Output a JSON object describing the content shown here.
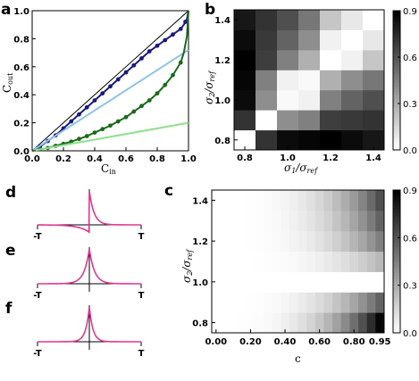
{
  "panels": {
    "a": {
      "letter": "a"
    },
    "b": {
      "letter": "b"
    },
    "c": {
      "letter": "c"
    },
    "d": {
      "letter": "d"
    },
    "e": {
      "letter": "e"
    },
    "f": {
      "letter": "f"
    }
  },
  "colors": {
    "identity": "#000000",
    "navy": "#1a1a80",
    "light_blue": "#8fc3e6",
    "dark_green": "#1a6b1a",
    "light_green": "#8ee08e",
    "pink": "#e0378f"
  },
  "chart_data": [
    {
      "id": "a",
      "type": "line",
      "xlabel": "C_in",
      "ylabel": "C_out",
      "xlim": [
        0.0,
        1.0
      ],
      "ylim": [
        0.0,
        1.0
      ],
      "xticks": [
        "0.0",
        "0.2",
        "0.4",
        "0.6",
        "0.8",
        "1.0"
      ],
      "yticks": [
        "0.0",
        "0.2",
        "0.4",
        "0.6",
        "0.8",
        "1.0"
      ],
      "series": [
        {
          "style": "identity",
          "x": [
            0,
            1
          ],
          "y": [
            0,
            1
          ]
        },
        {
          "style": "navy-fit",
          "x": [
            0,
            0.05,
            0.1,
            0.15,
            0.2,
            0.25,
            0.3,
            0.35,
            0.4,
            0.45,
            0.5,
            0.55,
            0.6,
            0.65,
            0.7,
            0.75,
            0.8,
            0.85,
            0.9,
            0.95,
            0.97,
            0.99,
            1.0
          ],
          "y": [
            0,
            0.03,
            0.07,
            0.11,
            0.16,
            0.21,
            0.26,
            0.31,
            0.36,
            0.41,
            0.46,
            0.51,
            0.56,
            0.61,
            0.66,
            0.71,
            0.75,
            0.79,
            0.83,
            0.87,
            0.9,
            0.94,
            1.0
          ]
        },
        {
          "style": "navy-points",
          "x": [
            0.05,
            0.1,
            0.15,
            0.2,
            0.25,
            0.3,
            0.35,
            0.4,
            0.45,
            0.5,
            0.55,
            0.6,
            0.65,
            0.7,
            0.75,
            0.8,
            0.85,
            0.9,
            0.95,
            0.98
          ],
          "y": [
            0.03,
            0.07,
            0.11,
            0.16,
            0.21,
            0.26,
            0.31,
            0.36,
            0.41,
            0.46,
            0.51,
            0.56,
            0.61,
            0.66,
            0.71,
            0.75,
            0.79,
            0.83,
            0.87,
            0.92
          ]
        },
        {
          "style": "light-blue",
          "x": [
            0,
            1
          ],
          "y": [
            0,
            0.72
          ]
        },
        {
          "style": "green-fit",
          "x": [
            0,
            0.05,
            0.1,
            0.15,
            0.2,
            0.25,
            0.3,
            0.35,
            0.4,
            0.45,
            0.5,
            0.55,
            0.6,
            0.65,
            0.7,
            0.75,
            0.8,
            0.85,
            0.9,
            0.95,
            0.97,
            0.99,
            1.0
          ],
          "y": [
            0,
            0.01,
            0.02,
            0.035,
            0.05,
            0.065,
            0.085,
            0.105,
            0.13,
            0.155,
            0.18,
            0.21,
            0.24,
            0.28,
            0.32,
            0.36,
            0.41,
            0.47,
            0.54,
            0.63,
            0.7,
            0.82,
            1.0
          ]
        },
        {
          "style": "green-points",
          "x": [
            0.05,
            0.1,
            0.15,
            0.2,
            0.25,
            0.3,
            0.35,
            0.4,
            0.45,
            0.5,
            0.55,
            0.6,
            0.65,
            0.7,
            0.75,
            0.8,
            0.85,
            0.9,
            0.95
          ],
          "y": [
            0.01,
            0.02,
            0.035,
            0.05,
            0.065,
            0.085,
            0.105,
            0.13,
            0.155,
            0.18,
            0.21,
            0.24,
            0.28,
            0.32,
            0.36,
            0.41,
            0.47,
            0.54,
            0.63
          ]
        },
        {
          "style": "light-green",
          "x": [
            0,
            1
          ],
          "y": [
            0,
            0.2
          ]
        }
      ]
    },
    {
      "id": "b",
      "type": "heatmap",
      "xlabel": "σ1/σref",
      "ylabel": "σ2/σref",
      "xticks": [
        "0.8",
        "1.0",
        "1.2",
        "1.4"
      ],
      "yticks": [
        "0.8",
        "1.0",
        "1.2",
        "1.4"
      ],
      "grid_values": [
        0.8,
        0.9,
        1.0,
        1.1,
        1.2,
        1.3,
        1.4
      ],
      "colorbar_ticks": [
        "0.0",
        "0.3",
        "0.6",
        "0.9"
      ],
      "vmin": 0.0,
      "vmax": 0.9,
      "rows_bottom_to_top": [
        [
          0.0,
          0.72,
          0.86,
          0.88,
          0.9,
          0.86,
          0.82
        ],
        [
          0.72,
          0.0,
          0.4,
          0.45,
          0.68,
          0.7,
          0.72
        ],
        [
          0.86,
          0.4,
          0.02,
          0.05,
          0.45,
          0.55,
          0.62
        ],
        [
          0.88,
          0.45,
          0.05,
          0.02,
          0.28,
          0.4,
          0.48
        ],
        [
          0.9,
          0.68,
          0.45,
          0.28,
          0.0,
          0.05,
          0.2
        ],
        [
          0.86,
          0.7,
          0.55,
          0.4,
          0.05,
          0.0,
          0.08
        ],
        [
          0.82,
          0.72,
          0.62,
          0.48,
          0.2,
          0.08,
          0.0
        ]
      ]
    },
    {
      "id": "c",
      "type": "heatmap",
      "xlabel": "c",
      "ylabel": "σ2/σref",
      "xticks": [
        "0.00",
        "0.20",
        "0.40",
        "0.60",
        "0.80",
        "0.95"
      ],
      "yticks": [
        "0.8",
        "1.0",
        "1.2",
        "1.4"
      ],
      "c_values": [
        0.0,
        0.05,
        0.1,
        0.15,
        0.2,
        0.25,
        0.3,
        0.35,
        0.4,
        0.45,
        0.5,
        0.55,
        0.6,
        0.65,
        0.7,
        0.75,
        0.8,
        0.85,
        0.9,
        0.95
      ],
      "sigma_values": [
        0.8,
        0.9,
        1.0,
        1.1,
        1.2,
        1.3,
        1.4
      ],
      "colorbar_ticks": [
        "0.0",
        "0.3",
        "0.6",
        "0.9"
      ],
      "vmin": 0.0,
      "vmax": 0.9,
      "row_max_bottom_to_top": [
        0.88,
        0.55,
        0.0,
        0.25,
        0.45,
        0.55,
        0.62
      ]
    },
    {
      "id": "d",
      "type": "line",
      "xticks": [
        "-T",
        "T"
      ],
      "series": [
        {
          "name": "",
          "shape": "asymmetric"
        }
      ]
    },
    {
      "id": "e",
      "type": "line",
      "xticks": [
        "-T",
        "T"
      ],
      "series": [
        {
          "name": "",
          "shape": "symmetric-wide"
        }
      ]
    },
    {
      "id": "f",
      "type": "line",
      "xticks": [
        "-T",
        "T"
      ],
      "series": [
        {
          "name": "",
          "shape": "symmetric"
        }
      ]
    }
  ]
}
